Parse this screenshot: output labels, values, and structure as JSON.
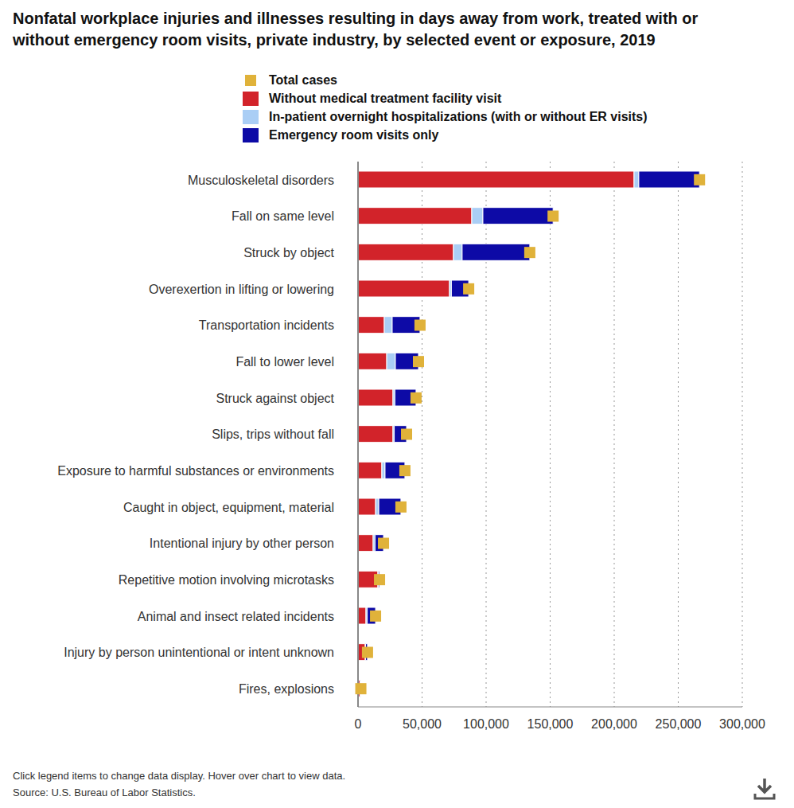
{
  "chart_data": {
    "type": "bar",
    "title": "Nonfatal workplace injuries and illnesses resulting in days away from work, treated with or without emergency room visits, private industry, by selected event or exposure, 2019",
    "orientation": "horizontal",
    "stacked": true,
    "grid": true,
    "legend": "top",
    "categories": [
      "Musculoskeletal disorders",
      "Fall on same level",
      "Struck by object",
      "Overexertion in lifting or lowering",
      "Transportation incidents",
      "Fall to lower level",
      "Struck against object",
      "Slips, trips without fall",
      "Exposure to harmful substances or environments",
      "Caught in object, equipment, material",
      "Intentional injury by other person",
      "Repetitive motion involving microtasks",
      "Animal and insect related incidents",
      "Injury by person unintentional or intent unknown",
      "Fires, explosions"
    ],
    "series": [
      {
        "name": "Total cases",
        "type": "scatter",
        "marker": "square",
        "color": "#e0b23a",
        "values": [
          266600,
          152300,
          134100,
          86400,
          48400,
          47200,
          45300,
          37900,
          36600,
          33500,
          19900,
          16800,
          13700,
          7400,
          2200
        ]
      },
      {
        "name": "Without medical treatment facility visit",
        "type": "bar",
        "color": "#d2232a",
        "values": [
          215500,
          88800,
          74500,
          71400,
          20500,
          22400,
          27300,
          27300,
          18600,
          13700,
          11800,
          15500,
          6200,
          5600,
          1500
        ]
      },
      {
        "name": "In-patient overnight hospitalizations (with or without ER visits)",
        "type": "bar",
        "color": "#aacef5",
        "values": [
          3700,
          8700,
          6800,
          1500,
          6200,
          6800,
          1500,
          1000,
          2500,
          2500,
          1500,
          500,
          1000,
          300,
          300
        ]
      },
      {
        "name": "Emergency room visits only",
        "type": "bar",
        "color": "#0d0aa6",
        "values": [
          47400,
          54800,
          52800,
          13500,
          21700,
          18000,
          16500,
          9600,
          15500,
          17300,
          6600,
          800,
          6500,
          1500,
          400
        ]
      }
    ],
    "xlim": [
      0,
      300000
    ],
    "xticks": [
      0,
      {
        "value": 50000,
        "label": "50,000"
      },
      {
        "value": 100000,
        "label": "100,000"
      },
      {
        "value": 150000,
        "label": "150,000"
      },
      {
        "value": 200000,
        "label": "200,000"
      },
      {
        "value": 250000,
        "label": "250,000"
      },
      {
        "value": 300000,
        "label": "300,000"
      }
    ],
    "annotations": [
      "Click legend items to change data display. Hover over chart to view data.",
      "Source: U.S. Bureau of Labor Statistics."
    ]
  }
}
